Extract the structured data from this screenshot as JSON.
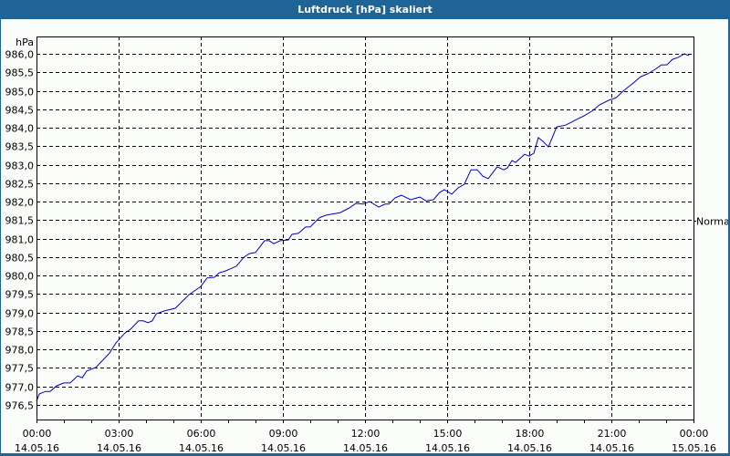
{
  "window": {
    "title": "Luftdruck [hPa] skaliert",
    "frame_color": "#1e6497",
    "background": "#fbfdfb"
  },
  "chart_data": {
    "type": "line",
    "title": "Luftdruck [hPa] skaliert",
    "xlabel": "",
    "ylabel": "hPa",
    "ylim": [
      976.1,
      986.5
    ],
    "xlim_hours": [
      0,
      24
    ],
    "grid": true,
    "grid_style": "dashed",
    "legend": {
      "position": "right",
      "entries": [
        "Normal"
      ]
    },
    "line_color": "#0000c8",
    "y_ticks": [
      "986,0",
      "985,5",
      "985,0",
      "984,5",
      "984,0",
      "983,5",
      "983,0",
      "982,5",
      "982,0",
      "981,5",
      "981,0",
      "980,5",
      "980,0",
      "979,5",
      "979,0",
      "978,5",
      "978,0",
      "977,5",
      "977,0",
      "976,5"
    ],
    "y_tick_values": [
      986.0,
      985.5,
      985.0,
      984.5,
      984.0,
      983.5,
      983.0,
      982.5,
      982.0,
      981.5,
      981.0,
      980.5,
      980.0,
      979.5,
      979.0,
      978.5,
      978.0,
      977.5,
      977.0,
      976.5
    ],
    "x_ticks": [
      {
        "hour": 0,
        "time": "00:00",
        "date": "14.05.16"
      },
      {
        "hour": 3,
        "time": "03:00",
        "date": "14.05.16"
      },
      {
        "hour": 6,
        "time": "06:00",
        "date": "14.05.16"
      },
      {
        "hour": 9,
        "time": "09:00",
        "date": "14.05.16"
      },
      {
        "hour": 12,
        "time": "12:00",
        "date": "14.05.16"
      },
      {
        "hour": 15,
        "time": "15:00",
        "date": "14.05.16"
      },
      {
        "hour": 18,
        "time": "18:00",
        "date": "14.05.16"
      },
      {
        "hour": 21,
        "time": "21:00",
        "date": "14.05.16"
      },
      {
        "hour": 24,
        "time": "00:00",
        "date": "15.05.16"
      }
    ],
    "series": [
      {
        "name": "Normal",
        "x_hours": [
          0,
          0.1,
          0.33,
          0.5,
          0.73,
          1.0,
          1.23,
          1.5,
          1.67,
          1.83,
          2.17,
          2.67,
          2.9,
          3.23,
          3.43,
          3.73,
          3.9,
          4.07,
          4.23,
          4.37,
          4.67,
          5.07,
          5.57,
          5.77,
          6.0,
          6.23,
          6.5,
          6.67,
          6.9,
          7.3,
          7.57,
          7.77,
          8.0,
          8.33,
          8.5,
          8.67,
          8.9,
          9.2,
          9.33,
          9.57,
          9.83,
          10.0,
          10.33,
          10.57,
          11.1,
          11.43,
          11.67,
          11.93,
          12.17,
          12.5,
          12.73,
          12.87,
          13.1,
          13.33,
          13.67,
          14.0,
          14.23,
          14.5,
          14.73,
          14.9,
          15.17,
          15.4,
          15.63,
          15.87,
          16.1,
          16.3,
          16.5,
          16.83,
          17.07,
          17.2,
          17.37,
          17.5,
          17.83,
          18.0,
          18.17,
          18.33,
          18.5,
          18.7,
          19.0,
          19.33,
          19.67,
          20.0,
          20.33,
          20.57,
          20.9,
          21.17,
          21.43,
          21.77,
          22.07,
          22.33,
          22.6,
          22.83,
          23.03,
          23.23,
          23.43,
          23.67,
          23.83
        ],
        "values": [
          976.59,
          976.79,
          976.86,
          976.86,
          977.01,
          977.09,
          977.09,
          977.28,
          977.23,
          977.41,
          977.51,
          977.9,
          978.17,
          978.44,
          978.54,
          978.77,
          978.77,
          978.72,
          978.77,
          978.96,
          979.04,
          979.11,
          979.48,
          979.58,
          979.7,
          979.93,
          979.95,
          980.07,
          980.12,
          980.25,
          980.49,
          980.59,
          980.62,
          980.94,
          980.94,
          980.86,
          980.94,
          980.96,
          981.11,
          981.14,
          981.31,
          981.31,
          981.56,
          981.63,
          981.7,
          981.83,
          981.95,
          981.93,
          982.0,
          981.85,
          981.93,
          981.93,
          982.1,
          982.17,
          982.05,
          982.12,
          982.02,
          982.05,
          982.25,
          982.32,
          982.2,
          982.37,
          982.47,
          982.86,
          982.86,
          982.69,
          982.62,
          982.94,
          982.86,
          982.91,
          983.11,
          983.06,
          983.28,
          983.23,
          983.31,
          983.73,
          983.63,
          983.48,
          984.02,
          984.07,
          984.2,
          984.32,
          984.47,
          984.62,
          984.74,
          984.81,
          984.99,
          985.19,
          985.38,
          985.46,
          985.58,
          985.7,
          985.7,
          985.85,
          985.9,
          986.0,
          985.95
        ]
      }
    ]
  }
}
